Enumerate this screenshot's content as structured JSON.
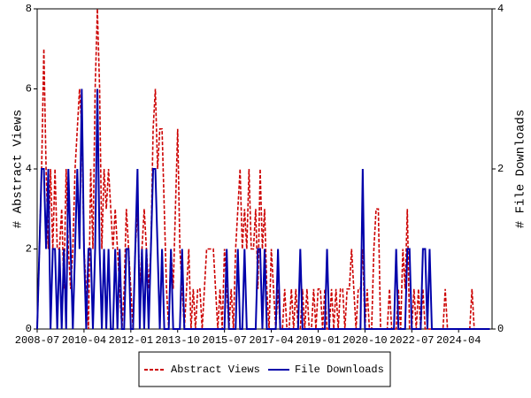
{
  "chart_data": {
    "type": "line",
    "x": [
      "2008-07",
      "2008-08",
      "2008-09",
      "2008-10",
      "2008-11",
      "2008-12",
      "2009-01",
      "2009-02",
      "2009-03",
      "2009-04",
      "2009-05",
      "2009-06",
      "2009-07",
      "2009-08",
      "2009-09",
      "2009-10",
      "2009-11",
      "2009-12",
      "2010-01",
      "2010-02",
      "2010-03",
      "2010-04",
      "2010-05",
      "2010-06",
      "2010-07",
      "2010-08",
      "2010-09",
      "2010-10",
      "2010-11",
      "2010-12",
      "2011-01",
      "2011-02",
      "2011-03",
      "2011-04",
      "2011-05",
      "2011-06",
      "2011-07",
      "2011-08",
      "2011-09",
      "2011-10",
      "2011-11",
      "2011-12",
      "2012-01",
      "2012-02",
      "2012-03",
      "2012-04",
      "2012-05",
      "2012-06",
      "2012-07",
      "2012-08",
      "2012-09",
      "2012-10",
      "2012-11",
      "2012-12",
      "2013-01",
      "2013-02",
      "2013-03",
      "2013-04",
      "2013-05",
      "2013-06",
      "2013-07",
      "2013-08",
      "2013-09",
      "2013-10",
      "2013-11",
      "2013-12",
      "2014-01",
      "2014-02",
      "2014-03",
      "2014-04",
      "2014-05",
      "2014-06",
      "2014-07",
      "2014-08",
      "2014-09",
      "2014-10",
      "2014-11",
      "2014-12",
      "2015-01",
      "2015-02",
      "2015-03",
      "2015-04",
      "2015-05",
      "2015-06",
      "2015-07",
      "2015-08",
      "2015-09",
      "2015-10",
      "2015-11",
      "2015-12",
      "2016-01",
      "2016-02",
      "2016-03",
      "2016-04",
      "2016-05",
      "2016-06",
      "2016-07",
      "2016-08",
      "2016-09",
      "2016-10",
      "2016-11",
      "2016-12",
      "2017-01",
      "2017-02",
      "2017-03",
      "2017-04",
      "2017-05",
      "2017-06",
      "2017-07",
      "2017-08",
      "2017-09",
      "2017-10",
      "2017-11",
      "2017-12",
      "2018-01",
      "2018-02",
      "2018-03",
      "2018-04",
      "2018-05",
      "2018-06",
      "2018-07",
      "2018-08",
      "2018-09",
      "2018-10",
      "2018-11",
      "2018-12",
      "2019-01",
      "2019-02",
      "2019-03",
      "2019-04",
      "2019-05",
      "2019-06",
      "2019-07",
      "2019-08",
      "2019-09",
      "2019-10",
      "2019-11",
      "2019-12",
      "2020-01",
      "2020-02",
      "2020-03",
      "2020-04",
      "2020-05",
      "2020-06",
      "2020-07",
      "2020-08",
      "2020-09",
      "2020-10",
      "2020-11",
      "2020-12",
      "2021-01",
      "2021-02",
      "2021-03",
      "2021-04",
      "2021-05",
      "2021-06",
      "2021-07",
      "2021-08",
      "2021-09",
      "2021-10",
      "2021-11",
      "2021-12",
      "2022-01",
      "2022-02",
      "2022-03",
      "2022-04",
      "2022-05",
      "2022-06",
      "2022-07",
      "2022-08",
      "2022-09",
      "2022-10",
      "2022-11",
      "2022-12",
      "2023-01",
      "2023-02",
      "2023-03",
      "2023-04",
      "2023-05",
      "2023-06",
      "2023-07",
      "2023-08",
      "2023-09",
      "2023-10",
      "2023-11",
      "2023-12",
      "2024-01",
      "2024-02",
      "2024-03",
      "2024-04",
      "2024-05",
      "2024-06",
      "2024-07",
      "2024-08",
      "2024-09",
      "2024-10",
      "2024-11",
      "2024-12",
      "2025-01",
      "2025-02",
      "2025-03",
      "2025-04",
      "2025-05",
      "2025-06"
    ],
    "series": [
      {
        "name": "Abstract Views",
        "color": "#cc0000",
        "dash": true,
        "values": [
          0,
          2,
          4,
          7,
          4,
          2,
          4,
          2,
          4,
          2,
          2,
          3,
          1,
          4,
          2,
          1,
          2,
          4,
          5,
          6,
          5,
          2,
          1,
          0,
          4,
          2,
          6,
          8,
          6,
          2,
          4,
          3,
          4,
          3,
          2,
          3,
          2,
          1,
          0,
          1,
          3,
          2,
          1,
          0,
          2,
          3,
          1,
          2,
          3,
          2,
          1,
          2,
          5,
          6,
          4,
          5,
          5,
          3,
          1,
          0,
          2,
          1,
          3,
          5,
          2,
          1,
          0,
          1,
          2,
          0,
          1,
          0,
          1,
          1,
          0,
          1,
          2,
          2,
          2,
          2,
          1,
          0,
          1,
          0,
          2,
          1,
          0,
          1,
          0,
          2,
          3,
          4,
          2,
          3,
          2,
          4,
          2,
          2,
          3,
          1,
          4,
          2,
          3,
          1,
          0,
          2,
          1,
          0,
          1,
          0,
          0,
          1,
          0,
          0,
          1,
          0,
          1,
          0,
          0,
          1,
          0,
          1,
          0,
          0,
          1,
          0,
          1,
          1,
          0,
          1,
          0,
          0,
          1,
          0,
          1,
          0,
          1,
          1,
          0,
          1,
          1,
          2,
          1,
          0,
          1,
          1,
          2,
          0,
          1,
          0,
          0,
          2,
          3,
          3,
          0,
          0,
          0,
          0,
          1,
          0,
          0,
          0,
          1,
          0,
          2,
          1,
          3,
          0,
          0,
          1,
          0,
          1,
          0,
          1,
          0,
          0,
          0,
          0,
          0,
          0,
          0,
          0,
          0,
          1,
          0,
          0,
          0,
          0,
          0,
          0,
          0,
          0,
          0,
          0,
          0,
          1,
          0,
          0,
          0,
          0,
          0,
          0,
          0,
          0
        ]
      },
      {
        "name": "File Downloads",
        "color": "#0000aa",
        "dash": false,
        "axis": "y2",
        "values": [
          0,
          1,
          2,
          2,
          1,
          2,
          0,
          1,
          1,
          0,
          1,
          0,
          1,
          0,
          2,
          1,
          0,
          1,
          2,
          1,
          3,
          1,
          0,
          1,
          1,
          0,
          1,
          3,
          1,
          0,
          1,
          0,
          1,
          0,
          0,
          1,
          0,
          1,
          0,
          0,
          1,
          1,
          0,
          0,
          1,
          2,
          0,
          1,
          0,
          1,
          0,
          1,
          2,
          2,
          1,
          0,
          1,
          0,
          0,
          0,
          1,
          0,
          0,
          0,
          0,
          1,
          0,
          0,
          0,
          0,
          0,
          0,
          0,
          0,
          0,
          0,
          0,
          0,
          0,
          0,
          0,
          0,
          0,
          0,
          0,
          1,
          0,
          0,
          0,
          0,
          1,
          0,
          0,
          1,
          0,
          0,
          0,
          0,
          0,
          1,
          1,
          0,
          1,
          0,
          0,
          0,
          0,
          0,
          1,
          0,
          0,
          0,
          0,
          0,
          0,
          0,
          0,
          0,
          1,
          0,
          0,
          0,
          0,
          0,
          0,
          0,
          0,
          0,
          0,
          0,
          1,
          0,
          0,
          0,
          0,
          0,
          0,
          0,
          0,
          0,
          0,
          0,
          0,
          0,
          0,
          0,
          2,
          0,
          0,
          0,
          0,
          0,
          0,
          0,
          0,
          0,
          0,
          0,
          0,
          0,
          0,
          1,
          0,
          0,
          0,
          0,
          1,
          1,
          0,
          0,
          0,
          0,
          0,
          1,
          1,
          0,
          1,
          0,
          0,
          0,
          0,
          0,
          0,
          0,
          0,
          0,
          0,
          0,
          0,
          0,
          0,
          0,
          0,
          0,
          0,
          0,
          0,
          0,
          0,
          0,
          0,
          0,
          0,
          0
        ]
      }
    ],
    "xlim": [
      "2008-07",
      "2025-07"
    ],
    "xticks": [
      "2008-07",
      "2010-04",
      "2012-01",
      "2013-10",
      "2015-07",
      "2017-04",
      "2019-01",
      "2020-10",
      "2022-07",
      "2024-04"
    ],
    "ylabel": "# Abstract Views",
    "y2label": "# File Downloads",
    "ylim": [
      0,
      8
    ],
    "yticks": [
      0,
      2,
      4,
      6,
      8
    ],
    "y2lim": [
      0,
      4
    ],
    "y2ticks": [
      0,
      2,
      4
    ],
    "legend": "bottom"
  }
}
